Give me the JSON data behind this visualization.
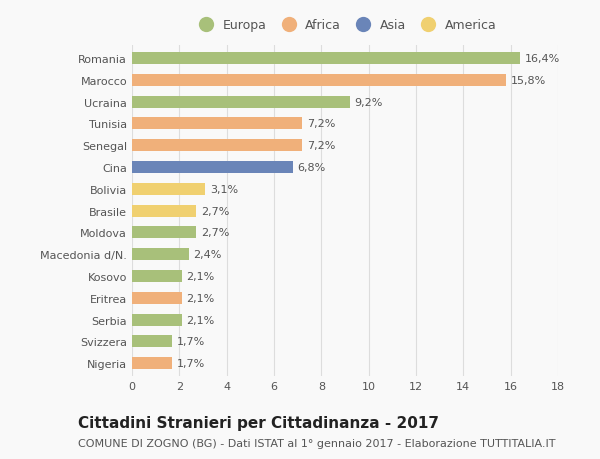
{
  "categories": [
    "Romania",
    "Marocco",
    "Ucraina",
    "Tunisia",
    "Senegal",
    "Cina",
    "Bolivia",
    "Brasile",
    "Moldova",
    "Macedonia d/N.",
    "Kosovo",
    "Eritrea",
    "Serbia",
    "Svizzera",
    "Nigeria"
  ],
  "values": [
    16.4,
    15.8,
    9.2,
    7.2,
    7.2,
    6.8,
    3.1,
    2.7,
    2.7,
    2.4,
    2.1,
    2.1,
    2.1,
    1.7,
    1.7
  ],
  "labels": [
    "16,4%",
    "15,8%",
    "9,2%",
    "7,2%",
    "7,2%",
    "6,8%",
    "3,1%",
    "2,7%",
    "2,7%",
    "2,4%",
    "2,1%",
    "2,1%",
    "2,1%",
    "1,7%",
    "1,7%"
  ],
  "continents": [
    "Europa",
    "Africa",
    "Europa",
    "Africa",
    "Africa",
    "Asia",
    "America",
    "America",
    "Europa",
    "Europa",
    "Europa",
    "Africa",
    "Europa",
    "Europa",
    "Africa"
  ],
  "colors": {
    "Europa": "#a8c07a",
    "Africa": "#f0b07a",
    "Asia": "#6a85b8",
    "America": "#f0d070"
  },
  "legend_order": [
    "Europa",
    "Africa",
    "Asia",
    "America"
  ],
  "title": "Cittadini Stranieri per Cittadinanza - 2017",
  "subtitle": "COMUNE DI ZOGNO (BG) - Dati ISTAT al 1° gennaio 2017 - Elaborazione TUTTITALIA.IT",
  "xlim": [
    0,
    18
  ],
  "xticks": [
    0,
    2,
    4,
    6,
    8,
    10,
    12,
    14,
    16,
    18
  ],
  "background_color": "#f9f9f9",
  "grid_color": "#dddddd",
  "bar_height": 0.55,
  "title_fontsize": 11,
  "subtitle_fontsize": 8,
  "label_fontsize": 8,
  "tick_fontsize": 8,
  "legend_fontsize": 9
}
